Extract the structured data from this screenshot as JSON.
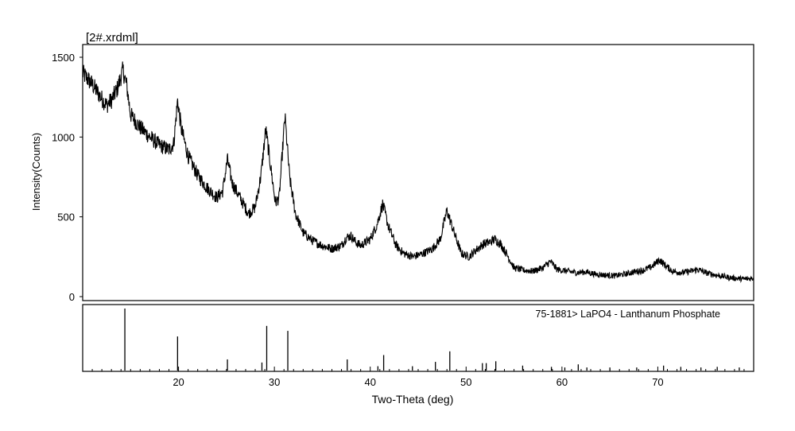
{
  "chart_data": [
    {
      "type": "line",
      "title": "[2#.xrdml]",
      "xlabel": "Two-Theta (deg)",
      "ylabel": "Intensity(Counts)",
      "xlim": [
        10,
        80
      ],
      "ylim": [
        0,
        1500
      ],
      "y_ticks": [
        0,
        500,
        1000,
        1500
      ],
      "x_ticks": [
        20,
        30,
        40,
        50,
        60,
        70
      ],
      "grid": false,
      "series": [
        {
          "x": [
            10,
            11,
            12,
            12.5,
            13,
            13.6,
            14.2,
            14.6,
            15,
            16,
            17,
            18,
            19,
            19.5,
            19.9,
            20.3,
            21,
            22,
            23,
            24,
            24.6,
            25.1,
            25.6,
            26.5,
            27.3,
            28,
            28.6,
            29.1,
            29.6,
            30.1,
            30.5,
            31.1,
            31.6,
            32.2,
            33,
            34,
            35,
            36,
            37,
            37.5,
            38,
            38.5,
            39,
            40,
            40.7,
            41.3,
            41.9,
            42.7,
            43.5,
            44.5,
            45.5,
            46.5,
            47.3,
            48,
            48.7,
            49.5,
            50.3,
            51,
            51.8,
            52.4,
            53,
            53.6,
            54.3,
            55,
            56,
            57,
            58,
            58.8,
            59.5,
            60.5,
            61.5,
            62.5,
            63.5,
            64.5,
            65.5,
            66.5,
            67.5,
            68.5,
            69.3,
            70.2,
            70.7,
            71.5,
            72.5,
            73.5,
            74.2,
            75,
            76,
            77,
            78,
            79,
            80
          ],
          "y": [
            1400,
            1330,
            1240,
            1200,
            1230,
            1300,
            1420,
            1320,
            1140,
            1060,
            1000,
            950,
            920,
            960,
            1230,
            1050,
            880,
            760,
            680,
            620,
            660,
            860,
            710,
            610,
            520,
            560,
            760,
            1050,
            820,
            590,
            620,
            1130,
            740,
            520,
            400,
            350,
            320,
            300,
            320,
            370,
            380,
            340,
            320,
            360,
            450,
            580,
            440,
            320,
            270,
            250,
            270,
            300,
            360,
            540,
            410,
            270,
            250,
            290,
            330,
            340,
            360,
            330,
            260,
            180,
            165,
            160,
            180,
            220,
            170,
            160,
            150,
            155,
            140,
            135,
            130,
            140,
            155,
            165,
            185,
            230,
            200,
            160,
            150,
            160,
            170,
            150,
            135,
            125,
            115,
            110,
            115
          ]
        }
      ]
    },
    {
      "type": "bar",
      "title": "75-1881> LaPO4 - Lanthanum Phosphate",
      "xlabel": "Two-Theta (deg)",
      "xlim": [
        10,
        80
      ],
      "ylim": [
        0,
        100
      ],
      "x": [
        14.4,
        19.9,
        25.1,
        28.7,
        29.2,
        31.4,
        37.6,
        40.8,
        41.4,
        44.4,
        46.8,
        48.3,
        51.7,
        52.1,
        53.1,
        55.9,
        58.9,
        60.3,
        61.7,
        62.6,
        65.0,
        67.8,
        70.6,
        72.4,
        74.5,
        76.2,
        78.5
      ],
      "y": [
        100,
        55,
        18,
        13,
        72,
        64,
        18,
        7,
        25,
        7,
        14,
        31,
        12,
        12,
        15,
        8,
        6,
        5,
        10,
        5,
        5,
        5,
        8,
        6,
        5,
        6,
        5
      ]
    }
  ]
}
